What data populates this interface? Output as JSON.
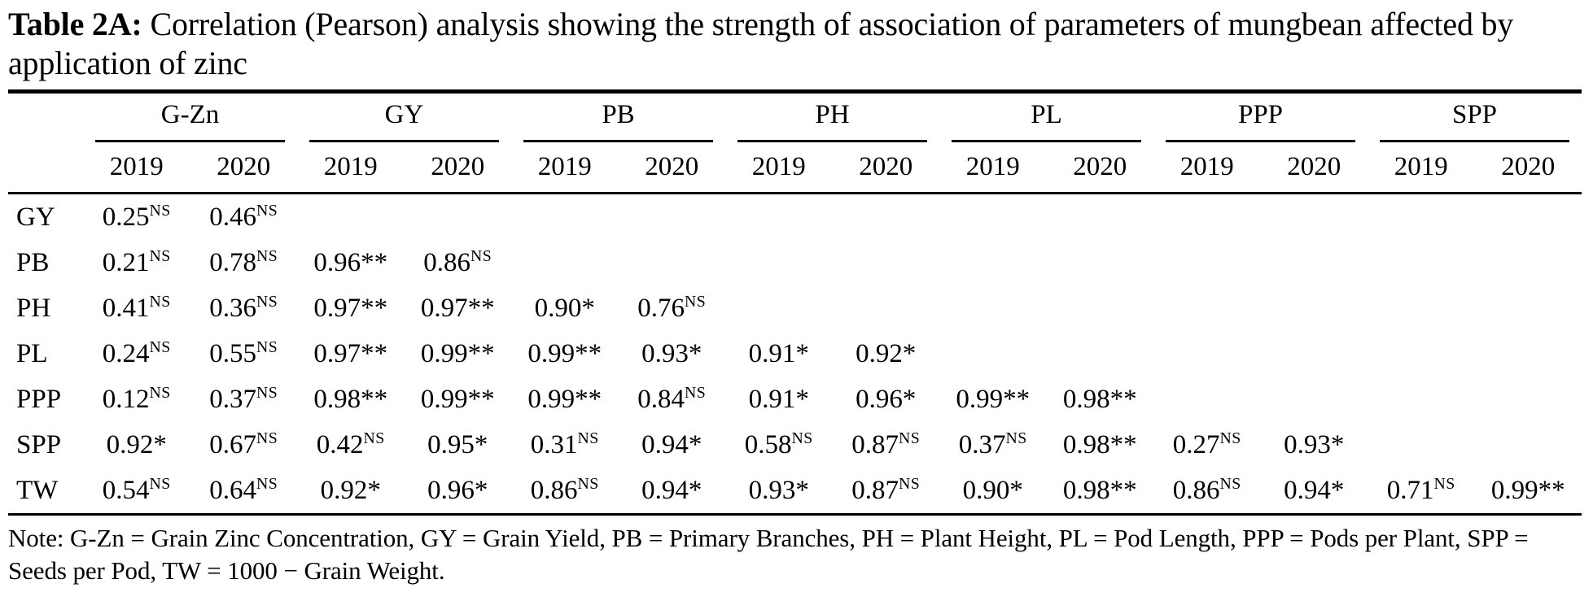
{
  "title": {
    "label": "Table 2A:",
    "text": "Correlation (Pearson) analysis showing the strength of association of parameters of mungbean affected by application of zinc"
  },
  "table": {
    "groups": [
      "G-Zn",
      "GY",
      "PB",
      "PH",
      "PL",
      "PPP",
      "SPP"
    ],
    "year_headers": [
      "2019",
      "2020"
    ],
    "rows": [
      {
        "label": "GY",
        "values": [
          "0.25^NS",
          "0.46^NS"
        ]
      },
      {
        "label": "PB",
        "values": [
          "0.21^NS",
          "0.78^NS",
          "0.96**",
          "0.86^NS"
        ]
      },
      {
        "label": "PH",
        "values": [
          "0.41^NS",
          "0.36^NS",
          "0.97**",
          "0.97**",
          "0.90*",
          "0.76^NS"
        ]
      },
      {
        "label": "PL",
        "values": [
          "0.24^NS",
          "0.55^NS",
          "0.97**",
          "0.99**",
          "0.99**",
          "0.93*",
          "0.91*",
          "0.92*"
        ]
      },
      {
        "label": "PPP",
        "values": [
          "0.12^NS",
          "0.37^NS",
          "0.98**",
          "0.99**",
          "0.99**",
          "0.84^NS",
          "0.91*",
          "0.96*",
          "0.99**",
          "0.98**"
        ]
      },
      {
        "label": "SPP",
        "values": [
          "0.92*",
          "0.67^NS",
          "0.42^NS",
          "0.95*",
          "0.31^NS",
          "0.94*",
          "0.58^NS",
          "0.87^NS",
          "0.37^NS",
          "0.98**",
          "0.27^NS",
          "0.93*"
        ]
      },
      {
        "label": "TW",
        "values": [
          "0.54^NS",
          "0.64^NS",
          "0.92*",
          "0.96*",
          "0.86^NS",
          "0.94*",
          "0.93*",
          "0.87^NS",
          "0.90*",
          "0.98**",
          "0.86^NS",
          "0.94*",
          "0.71^NS",
          "0.99**"
        ]
      }
    ]
  },
  "note": "Note: G-Zn = Grain Zinc Concentration, GY = Grain Yield, PB = Primary Branches, PH = Plant Height, PL = Pod Length, PPP = Pods per Plant, SPP = Seeds per Pod, TW = 1000 − Grain Weight."
}
